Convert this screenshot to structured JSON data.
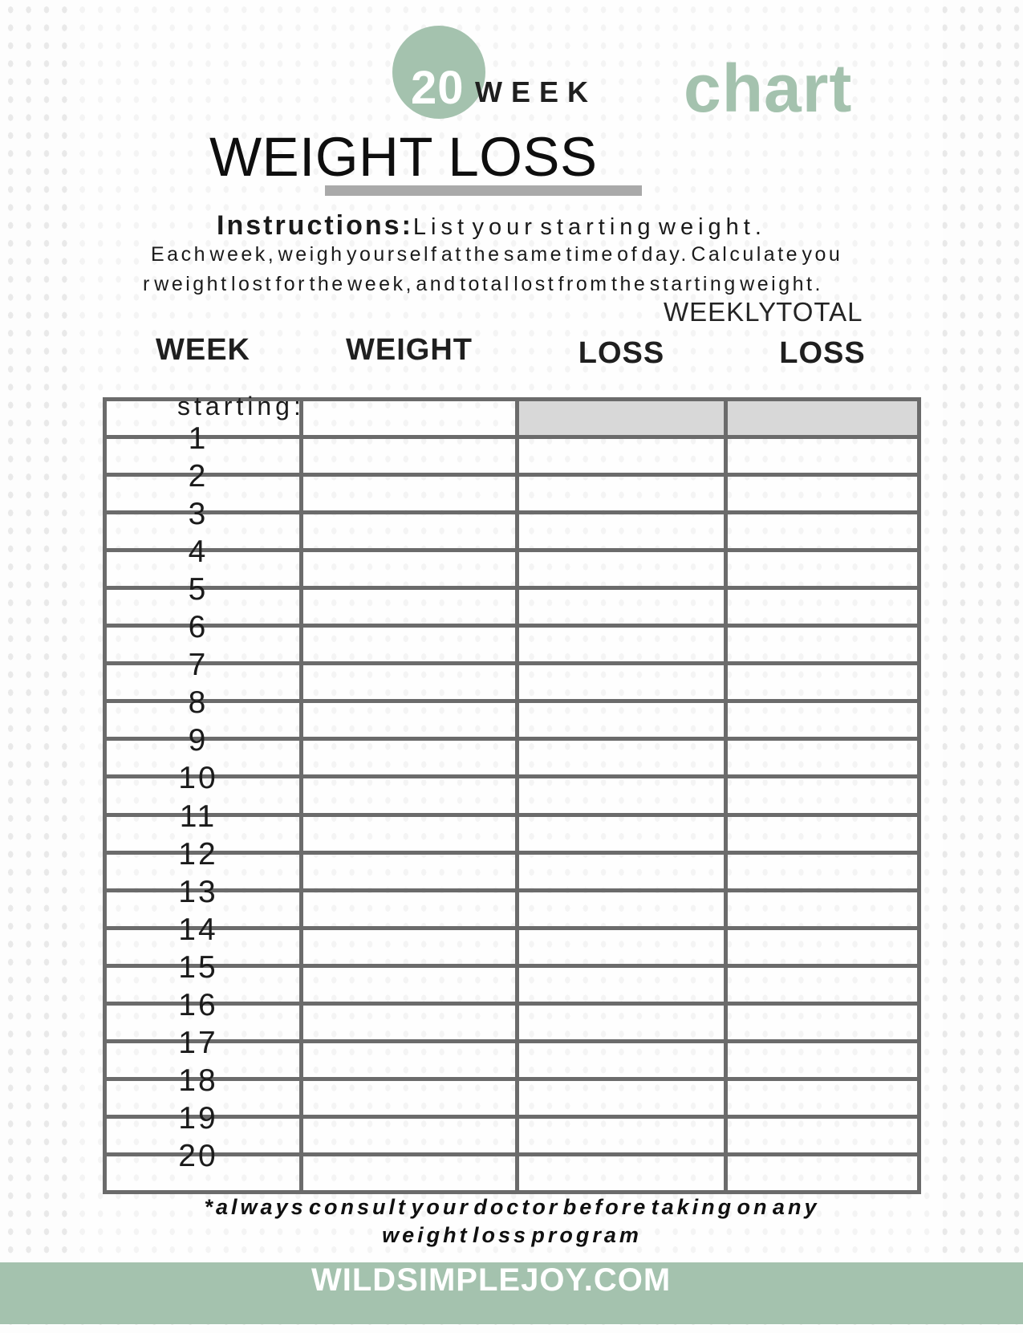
{
  "header": {
    "badge_number": "20",
    "badge_week_label": "WEEK",
    "chart_label": "chart",
    "title": "WEIGHT LOSS"
  },
  "instructions": {
    "heading": "Instructions:",
    "line1": "List your starting weight.",
    "line2": "Each week, weigh yourself at the same time of day. Calculate you",
    "line3": "r weight lost for the week, and total lost from the starting weight."
  },
  "table": {
    "group_header": "WEEKLY TOTAL",
    "columns": [
      "WEEK",
      "WEIGHT",
      "LOSS",
      "LOSS"
    ],
    "row_labels": [
      "starting:",
      "1",
      "2",
      "3",
      "4",
      "5",
      "6",
      "7",
      "8",
      "9",
      "10",
      "11",
      "12",
      "13",
      "14",
      "15",
      "16",
      "17",
      "18",
      "19",
      "20"
    ]
  },
  "disclaimer": {
    "line1": "*always consult your doctor before taking on any",
    "line2": "weight loss program"
  },
  "footer": {
    "site": "WILDSIMPLEJOY.COM"
  },
  "colors": {
    "accent_green": "#a4c2ae",
    "underline_gray": "#a9a9a9",
    "table_line": "#6b6b6b",
    "header_cell_gray": "#d8d8d8"
  }
}
